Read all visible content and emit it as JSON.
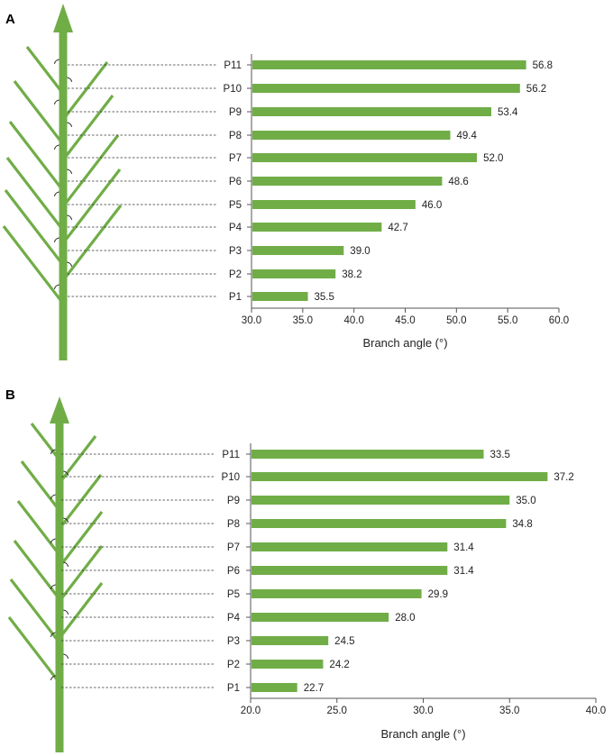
{
  "chart_data": [
    {
      "panel": "A",
      "type": "bar",
      "orientation": "horizontal",
      "categories": [
        "P1",
        "P2",
        "P3",
        "P4",
        "P5",
        "P6",
        "P7",
        "P8",
        "P9",
        "P10",
        "P11"
      ],
      "values": [
        35.5,
        38.2,
        39.0,
        42.7,
        46.0,
        48.6,
        52.0,
        49.4,
        53.4,
        56.2,
        56.8
      ],
      "value_labels": [
        "35.5",
        "38.2",
        "39.0",
        "42.7",
        "46.0",
        "48.6",
        "52.0",
        "49.4",
        "53.4",
        "56.2",
        "56.8"
      ],
      "xlabel": "Branch angle (°)",
      "xlim": [
        30,
        60
      ],
      "xticks": [
        30,
        35,
        40,
        45,
        50,
        55,
        60
      ],
      "xtick_labels": [
        "30.0",
        "35.0",
        "40.0",
        "45.0",
        "50.0",
        "55.0",
        "60.0"
      ],
      "bar_color": "#70AD47"
    },
    {
      "panel": "B",
      "type": "bar",
      "orientation": "horizontal",
      "categories": [
        "P1",
        "P2",
        "P3",
        "P4",
        "P5",
        "P6",
        "P7",
        "P8",
        "P9",
        "P10",
        "P11"
      ],
      "values": [
        22.7,
        24.2,
        24.5,
        28.0,
        29.9,
        31.4,
        31.4,
        34.8,
        35.0,
        37.2,
        33.5
      ],
      "value_labels": [
        "22.7",
        "24.2",
        "24.5",
        "28.0",
        "29.9",
        "31.4",
        "31.4",
        "34.8",
        "35.0",
        "37.2",
        "33.5"
      ],
      "xlabel": "Branch angle (°)",
      "xlim": [
        20,
        40
      ],
      "xticks": [
        20,
        25,
        30,
        35,
        40
      ],
      "xtick_labels": [
        "20.0",
        "25.0",
        "30.0",
        "35.0",
        "40.0"
      ],
      "bar_color": "#70AD47"
    }
  ],
  "colors": {
    "plant_green": "#70AD47",
    "axis": "#555555",
    "guide": "#333333"
  },
  "icons": [
    "plant-diagram"
  ]
}
